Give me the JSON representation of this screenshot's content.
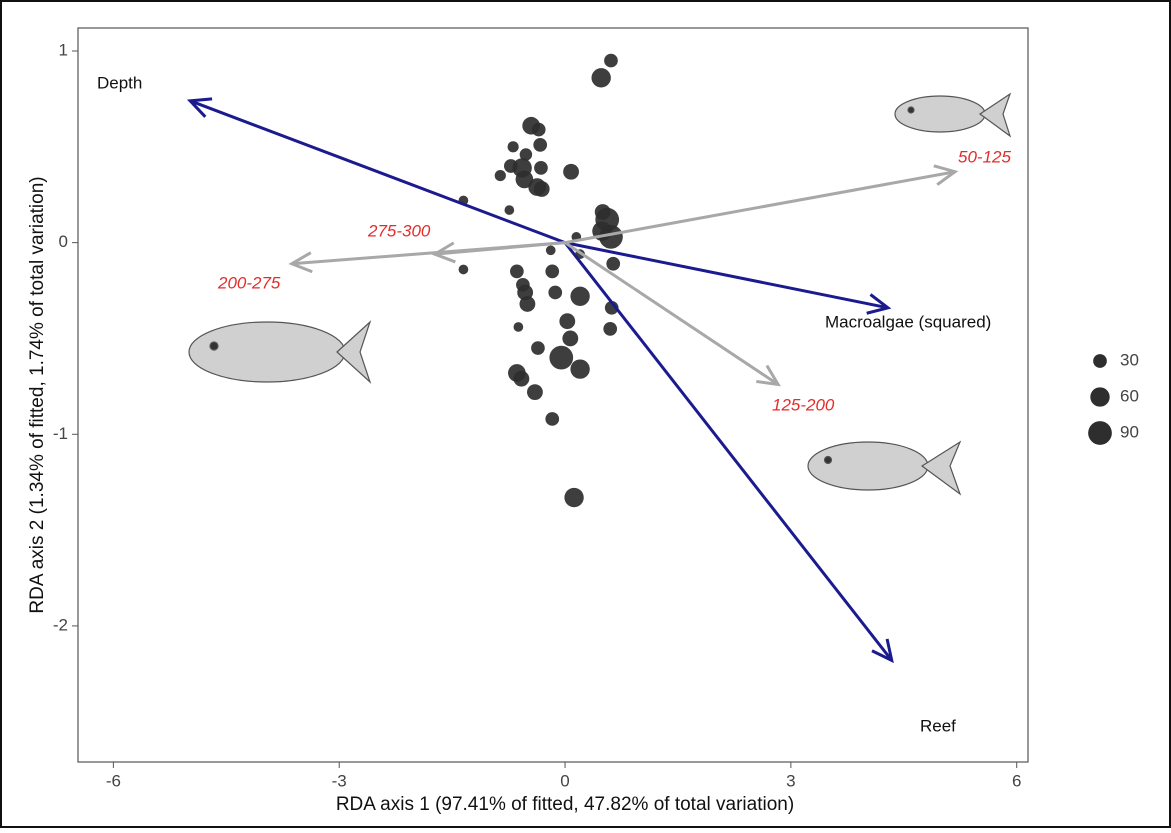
{
  "chart_data": {
    "type": "scatter",
    "x_label": "RDA axis 1 (97.41% of fitted, 47.82% of total variation)",
    "y_label": "RDA axis 2 (1.34% of fitted, 1.74% of total variation)",
    "xlim": [
      -6.47,
      6.15
    ],
    "ylim": [
      -2.71,
      1.12
    ],
    "xticks": [
      -6,
      -3,
      0,
      3,
      6
    ],
    "yticks": [
      -2,
      -1,
      0,
      1
    ],
    "grid": false,
    "series": [
      {
        "color": "#2e2e2e",
        "x": [
          0.61,
          0.48,
          -0.45,
          -0.35,
          -0.69,
          -0.52,
          -0.33,
          -0.72,
          -0.57,
          -0.32,
          0.08,
          -0.86,
          -0.54,
          -0.37,
          -0.31,
          -1.35,
          -0.74,
          0.5,
          0.56,
          0.49,
          0.61,
          0.15,
          -0.19,
          0.2,
          0.64,
          -1.35,
          -0.64,
          -0.17,
          -0.56,
          -0.53,
          -0.13,
          0.2,
          -0.5,
          0.62,
          0.03,
          -0.62,
          0.6,
          0.07,
          -0.36,
          -0.05,
          0.2,
          -0.64,
          -0.58,
          -0.4,
          -0.17,
          0.12
        ],
        "y": [
          0.95,
          0.86,
          0.61,
          0.59,
          0.5,
          0.46,
          0.51,
          0.4,
          0.39,
          0.39,
          0.37,
          0.35,
          0.33,
          0.29,
          0.28,
          0.22,
          0.17,
          0.16,
          0.12,
          0.06,
          0.03,
          0.03,
          -0.04,
          -0.06,
          -0.11,
          -0.14,
          -0.15,
          -0.15,
          -0.22,
          -0.26,
          -0.26,
          -0.28,
          -0.32,
          -0.34,
          -0.41,
          -0.44,
          -0.45,
          -0.5,
          -0.55,
          -0.6,
          -0.66,
          -0.68,
          -0.71,
          -0.78,
          -0.92,
          -1.33
        ],
        "sizes": [
          30,
          60,
          50,
          30,
          20,
          25,
          30,
          30,
          60,
          30,
          40,
          20,
          50,
          50,
          40,
          15,
          15,
          40,
          90,
          60,
          90,
          15,
          15,
          15,
          30,
          15,
          30,
          30,
          30,
          40,
          30,
          60,
          40,
          30,
          40,
          15,
          30,
          40,
          30,
          90,
          60,
          50,
          40,
          40,
          30,
          60
        ]
      }
    ],
    "size_legend": [
      30,
      60,
      90
    ],
    "vectors": [
      {
        "name": "Depth",
        "x": -4.98,
        "y": 0.74,
        "color": "#1b1b8f"
      },
      {
        "name": "Macroalgae (squared)",
        "x": 4.29,
        "y": -0.34,
        "color": "#1b1b8f"
      },
      {
        "name": "Reef",
        "x": 4.34,
        "y": -2.18,
        "color": "#1b1b8f"
      },
      {
        "name": "50-125",
        "x": 5.18,
        "y": 0.37,
        "color": "#a8a8a8"
      },
      {
        "name": "275-300",
        "x": -1.73,
        "y": -0.06,
        "color": "#a8a8a8"
      },
      {
        "name": "200-275",
        "x": -3.63,
        "y": -0.11,
        "color": "#a8a8a8"
      },
      {
        "name": "125-200",
        "x": 2.83,
        "y": -0.74,
        "color": "#a8a8a8"
      }
    ]
  }
}
